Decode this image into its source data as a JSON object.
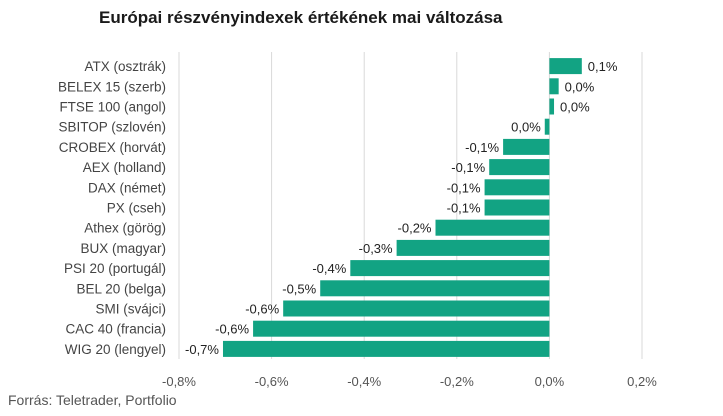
{
  "chart_data": {
    "type": "bar",
    "orientation": "horizontal",
    "title": "Európai részvényindexek értékének mai változása",
    "source": "Forrás: Teletrader, Portfolio",
    "categories": [
      "ATX (osztrák)",
      "BELEX 15 (szerb)",
      "FTSE 100 (angol)",
      "SBITOP (szlovén)",
      "CROBEX (horvát)",
      "AEX (holland)",
      "DAX (német)",
      "PX (cseh)",
      "Athex (görög)",
      "BUX (magyar)",
      "PSI 20 (portugál)",
      "BEL 20 (belga)",
      "SMI (svájci)",
      "CAC 40 (francia)",
      "WIG 20 (lengyel)"
    ],
    "values": [
      0.07,
      0.02,
      0.01,
      -0.01,
      -0.1,
      -0.13,
      -0.14,
      -0.14,
      -0.246,
      -0.33,
      -0.43,
      -0.495,
      -0.575,
      -0.64,
      -0.705
    ],
    "value_labels": [
      "0,1%",
      "0,0%",
      "0,0%",
      "0,0%",
      "-0,1%",
      "-0,1%",
      "-0,1%",
      "-0,1%",
      "-0,2%",
      "-0,3%",
      "-0,4%",
      "-0,5%",
      "-0,6%",
      "-0,6%",
      "-0,7%"
    ],
    "xlim": [
      -0.8,
      0.2
    ],
    "xticks": [
      -0.8,
      -0.6,
      -0.4,
      -0.2,
      0.0,
      0.2
    ],
    "xtick_labels": [
      "-0,8%",
      "-0,6%",
      "-0,4%",
      "-0,2%",
      "0,0%",
      "0,2%"
    ],
    "grid": true,
    "bar_color": "#12a383",
    "grid_color": "#d9d9d9"
  }
}
